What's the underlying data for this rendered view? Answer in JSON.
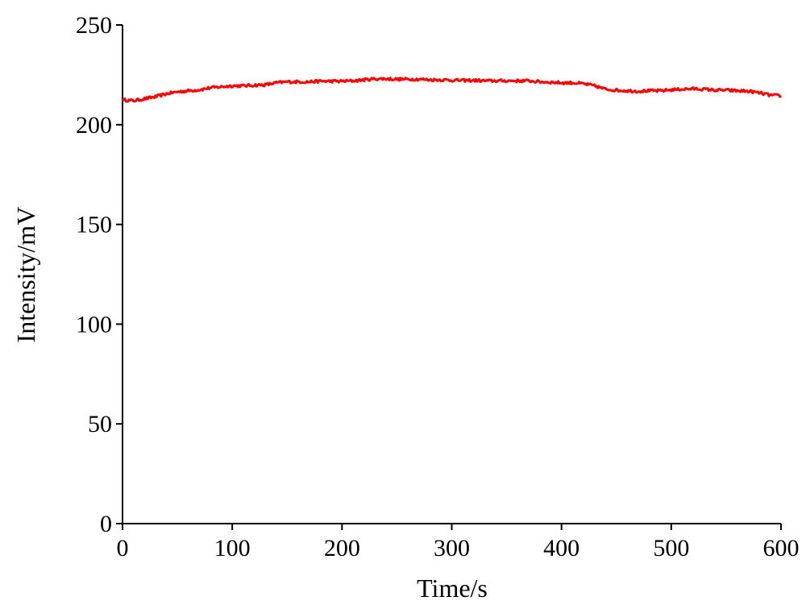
{
  "chart_data": {
    "type": "line",
    "title": "",
    "xlabel": "Time/s",
    "ylabel": "Intensity/mV",
    "xlim": [
      0,
      600
    ],
    "ylim": [
      0,
      250
    ],
    "xticks": [
      0,
      100,
      200,
      300,
      400,
      500,
      600
    ],
    "yticks": [
      0,
      50,
      100,
      150,
      200,
      250
    ],
    "grid": false,
    "legend": "none",
    "series": [
      {
        "color": "#ff0000",
        "x": [
          0,
          10,
          20,
          30,
          40,
          50,
          60,
          70,
          80,
          90,
          100,
          110,
          120,
          130,
          140,
          150,
          160,
          170,
          180,
          190,
          200,
          210,
          220,
          230,
          240,
          250,
          260,
          270,
          280,
          290,
          300,
          310,
          320,
          330,
          340,
          350,
          360,
          370,
          380,
          390,
          400,
          410,
          420,
          430,
          440,
          450,
          460,
          470,
          480,
          490,
          500,
          510,
          520,
          530,
          540,
          550,
          560,
          570,
          580,
          590,
          600
        ],
        "y": [
          212.5,
          212,
          213,
          214,
          215.5,
          216.5,
          217,
          217.5,
          218.5,
          219,
          219.5,
          219.5,
          219.8,
          220,
          221,
          221.5,
          221.5,
          221.5,
          221.8,
          221.8,
          221.8,
          222,
          222.5,
          223,
          223,
          222.8,
          222.8,
          222.8,
          222.5,
          222.5,
          222.3,
          222.2,
          222.2,
          222,
          222,
          222,
          222,
          222,
          221.5,
          221.3,
          221,
          221,
          220.5,
          219.5,
          217.8,
          217.3,
          217,
          216.8,
          217,
          217,
          217.5,
          217.8,
          218,
          217.8,
          217.3,
          217.3,
          217,
          216.8,
          216,
          214.8,
          214.5
        ]
      }
    ]
  }
}
